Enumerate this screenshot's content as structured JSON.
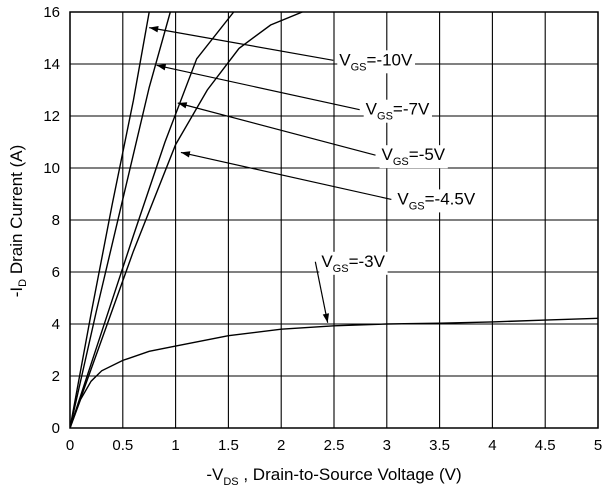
{
  "chart_data": {
    "type": "line",
    "xlabel_prefix": "-V",
    "xlabel_sub": "DS",
    "xlabel_rest": " , Drain-to-Source Voltage (V)",
    "ylabel_prefix": "-I",
    "ylabel_sub": "D",
    "ylabel_rest": " Drain Current (A)",
    "xlim": [
      0,
      5
    ],
    "ylim": [
      0,
      16
    ],
    "x_ticks": [
      "0",
      "0.5",
      "1",
      "1.5",
      "2",
      "2.5",
      "3",
      "3.5",
      "4",
      "4.5",
      "5"
    ],
    "y_ticks": [
      "0",
      "2",
      "4",
      "6",
      "8",
      "10",
      "12",
      "14",
      "16"
    ],
    "grid": true,
    "series": [
      {
        "name": "V_GS=-10V",
        "label_main": "V",
        "label_sub": "GS",
        "label_rest": "=-10V",
        "points": [
          [
            0,
            0
          ],
          [
            0.2,
            4.4
          ],
          [
            0.4,
            8.6
          ],
          [
            0.6,
            12.6
          ],
          [
            0.75,
            16
          ]
        ],
        "label_anchor": [
          0.75,
          15.4
        ],
        "label_pos": [
          2.55,
          13.95
        ]
      },
      {
        "name": "V_GS=-7V",
        "label_main": "V",
        "label_sub": "GS",
        "label_rest": "=-7V",
        "points": [
          [
            0,
            0
          ],
          [
            0.25,
            4.5
          ],
          [
            0.5,
            8.8
          ],
          [
            0.75,
            13.1
          ],
          [
            0.95,
            16
          ]
        ],
        "label_anchor": [
          0.82,
          13.95
        ],
        "label_pos": [
          2.8,
          12.05
        ]
      },
      {
        "name": "V_GS=-5V",
        "label_main": "V",
        "label_sub": "GS",
        "label_rest": "=-5V",
        "points": [
          [
            0,
            0
          ],
          [
            0.3,
            3.7
          ],
          [
            0.6,
            7.4
          ],
          [
            0.9,
            11
          ],
          [
            1.2,
            14.2
          ],
          [
            1.55,
            16
          ]
        ],
        "label_anchor": [
          1.02,
          12.5
        ],
        "label_pos": [
          2.95,
          10.3
        ]
      },
      {
        "name": "V_GS=-4.5V",
        "label_main": "V",
        "label_sub": "GS",
        "label_rest": "=-4.5V",
        "points": [
          [
            0,
            0
          ],
          [
            0.3,
            3.4
          ],
          [
            0.6,
            6.8
          ],
          [
            1.0,
            10.9
          ],
          [
            1.3,
            13.0
          ],
          [
            1.6,
            14.6
          ],
          [
            1.9,
            15.5
          ],
          [
            2.2,
            16
          ]
        ],
        "label_anchor": [
          1.05,
          10.6
        ],
        "label_pos": [
          3.1,
          8.6
        ]
      },
      {
        "name": "V_GS=-3V",
        "label_main": "V",
        "label_sub": "GS",
        "label_rest": "=-3V",
        "points": [
          [
            0,
            0
          ],
          [
            0.1,
            1.1
          ],
          [
            0.2,
            1.8
          ],
          [
            0.3,
            2.2
          ],
          [
            0.5,
            2.6
          ],
          [
            0.75,
            2.95
          ],
          [
            1.0,
            3.15
          ],
          [
            1.5,
            3.55
          ],
          [
            2.0,
            3.8
          ],
          [
            2.5,
            3.93
          ],
          [
            3.0,
            4.0
          ],
          [
            3.5,
            4.03
          ],
          [
            4.0,
            4.08
          ],
          [
            4.5,
            4.15
          ],
          [
            5.0,
            4.22
          ]
        ],
        "label_anchor": [
          2.44,
          4.05
        ],
        "label_pos": [
          2.38,
          6.2
        ]
      }
    ]
  }
}
